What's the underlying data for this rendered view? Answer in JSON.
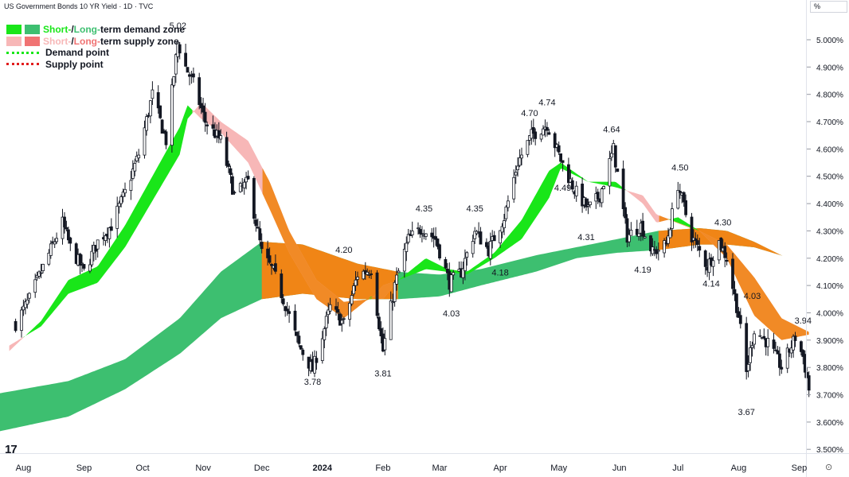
{
  "header": {
    "title": "US Government Bonds 10 YR Yield · 1D · TVC"
  },
  "price_scale": {
    "unit": "%"
  },
  "legend": {
    "demand_zone": {
      "short": "Short-",
      "sep": " / ",
      "long": "Long-",
      "rest": "term demand zone"
    },
    "supply_zone": {
      "short": "Short-",
      "sep": " / ",
      "long": "Long-",
      "rest": "term supply zone"
    },
    "demand_point": "Demand point",
    "supply_point": "Supply point"
  },
  "colors": {
    "short_demand": "#19e619",
    "long_demand": "#3dbf70",
    "short_supply": "#f7b7b7",
    "long_supply": "#f08516",
    "demand_point": "#19e619",
    "supply_point": "#e11d1d",
    "candle": "#131722"
  },
  "icons": {
    "logo": "tradingview-logo",
    "settings": "settings-icon"
  },
  "chart_data": {
    "type": "candlestick",
    "title": "US Government Bonds 10 YR Yield · 1D · TVC",
    "yunit": "%",
    "ylim": [
      3.45,
      5.08
    ],
    "y_ticks": [
      "5.000%",
      "4.900%",
      "4.800%",
      "4.700%",
      "4.600%",
      "4.500%",
      "4.400%",
      "4.300%",
      "4.200%",
      "4.100%",
      "4.000%",
      "3.900%",
      "3.800%",
      "3.700%",
      "3.600%",
      "3.500%"
    ],
    "x_ticks": [
      "Aug",
      "Sep",
      "Oct",
      "Nov",
      "Dec",
      "2024",
      "Feb",
      "Mar",
      "Apr",
      "May",
      "Jun",
      "Jul",
      "Aug",
      "Sep"
    ],
    "x_range": [
      "2023-07-28",
      "2024-09-06"
    ],
    "close_anchors": [
      [
        "2023-07-28",
        3.96
      ],
      [
        "2023-08-04",
        4.05
      ],
      [
        "2023-08-10",
        4.15
      ],
      [
        "2023-08-21",
        4.33
      ],
      [
        "2023-08-25",
        4.24
      ],
      [
        "2023-09-01",
        4.15
      ],
      [
        "2023-09-08",
        4.26
      ],
      [
        "2023-09-15",
        4.32
      ],
      [
        "2023-09-22",
        4.44
      ],
      [
        "2023-09-29",
        4.58
      ],
      [
        "2023-10-06",
        4.8
      ],
      [
        "2023-10-13",
        4.63
      ],
      [
        "2023-10-19",
        4.99
      ],
      [
        "2023-10-23",
        4.9
      ],
      [
        "2023-10-27",
        4.84
      ],
      [
        "2023-11-02",
        4.7
      ],
      [
        "2023-11-10",
        4.63
      ],
      [
        "2023-11-17",
        4.43
      ],
      [
        "2023-11-24",
        4.48
      ],
      [
        "2023-12-01",
        4.22
      ],
      [
        "2023-12-07",
        4.15
      ],
      [
        "2023-12-13",
        4.03
      ],
      [
        "2023-12-20",
        3.88
      ],
      [
        "2023-12-27",
        3.79
      ],
      [
        "2024-01-05",
        4.02
      ],
      [
        "2024-01-12",
        3.96
      ],
      [
        "2024-01-19",
        4.14
      ],
      [
        "2024-01-26",
        4.16
      ],
      [
        "2024-02-01",
        3.86
      ],
      [
        "2024-02-07",
        4.1
      ],
      [
        "2024-02-14",
        4.27
      ],
      [
        "2024-02-21",
        4.31
      ],
      [
        "2024-02-28",
        4.27
      ],
      [
        "2024-03-06",
        4.11
      ],
      [
        "2024-03-12",
        4.15
      ],
      [
        "2024-03-19",
        4.3
      ],
      [
        "2024-03-26",
        4.23
      ],
      [
        "2024-04-03",
        4.35
      ],
      [
        "2024-04-10",
        4.55
      ],
      [
        "2024-04-17",
        4.65
      ],
      [
        "2024-04-25",
        4.69
      ],
      [
        "2024-05-02",
        4.56
      ],
      [
        "2024-05-09",
        4.45
      ],
      [
        "2024-05-16",
        4.38
      ],
      [
        "2024-05-22",
        4.43
      ],
      [
        "2024-05-29",
        4.6
      ],
      [
        "2024-06-05",
        4.28
      ],
      [
        "2024-06-12",
        4.32
      ],
      [
        "2024-06-18",
        4.22
      ],
      [
        "2024-06-25",
        4.25
      ],
      [
        "2024-07-01",
        4.47
      ],
      [
        "2024-07-08",
        4.28
      ],
      [
        "2024-07-16",
        4.17
      ],
      [
        "2024-07-22",
        4.26
      ],
      [
        "2024-07-26",
        4.2
      ],
      [
        "2024-08-01",
        3.99
      ],
      [
        "2024-08-05",
        3.78
      ],
      [
        "2024-08-09",
        3.94
      ],
      [
        "2024-08-16",
        3.89
      ],
      [
        "2024-08-23",
        3.8
      ],
      [
        "2024-08-30",
        3.91
      ],
      [
        "2024-09-03",
        3.84
      ],
      [
        "2024-09-06",
        3.72
      ]
    ],
    "zones": {
      "short_term": {
        "x": [
          "2023-07-28",
          "2023-08-10",
          "2023-08-24",
          "2023-09-08",
          "2023-09-22",
          "2023-10-06",
          "2023-10-20",
          "2023-10-24",
          "2023-10-31",
          "2023-11-10",
          "2023-11-24",
          "2023-12-05",
          "2023-12-15",
          "2023-12-29",
          "2024-01-12",
          "2024-01-26",
          "2024-02-01",
          "2024-02-09",
          "2024-02-23",
          "2024-03-05",
          "2024-03-15",
          "2024-03-29",
          "2024-04-12",
          "2024-04-26",
          "2024-05-02",
          "2024-05-16",
          "2024-05-30",
          "2024-06-13",
          "2024-06-20",
          "2024-07-01",
          "2024-07-12",
          "2024-07-26",
          "2024-08-09",
          "2024-08-23",
          "2024-09-06"
        ],
        "fast": [
          3.86,
          3.97,
          4.12,
          4.17,
          4.32,
          4.5,
          4.68,
          4.76,
          4.71,
          4.66,
          4.55,
          4.38,
          4.22,
          4.05,
          3.98,
          4.06,
          4.05,
          4.12,
          4.2,
          4.16,
          4.15,
          4.22,
          4.34,
          4.52,
          4.55,
          4.48,
          4.48,
          4.4,
          4.33,
          4.35,
          4.3,
          4.2,
          3.99,
          3.9,
          3.92
        ],
        "slow": [
          3.88,
          3.95,
          4.07,
          4.11,
          4.24,
          4.41,
          4.58,
          4.71,
          4.77,
          4.7,
          4.63,
          4.48,
          4.3,
          4.12,
          4.04,
          4.05,
          4.1,
          4.12,
          4.16,
          4.15,
          4.14,
          4.2,
          4.27,
          4.42,
          4.53,
          4.48,
          4.46,
          4.43,
          4.36,
          4.33,
          4.3,
          4.25,
          4.13,
          3.98,
          3.93
        ],
        "demand_color": "#19e619",
        "supply_color": "#f7b7b7"
      },
      "long_term": {
        "x": [
          "2023-07-28",
          "2023-08-24",
          "2023-09-22",
          "2023-10-20",
          "2023-11-10",
          "2023-12-01",
          "2023-12-22",
          "2024-01-19",
          "2024-02-09",
          "2024-03-01",
          "2024-03-22",
          "2024-04-19",
          "2024-05-10",
          "2024-05-31",
          "2024-06-21",
          "2024-07-12",
          "2024-07-26",
          "2024-08-09",
          "2024-08-23",
          "2024-09-06"
        ],
        "upper": [
          3.7,
          3.75,
          3.83,
          3.98,
          4.15,
          4.26,
          4.25,
          4.18,
          4.15,
          4.14,
          4.16,
          4.21,
          4.24,
          4.27,
          4.3,
          4.31,
          4.3,
          4.26,
          4.21,
          4.18
        ],
        "lower": [
          3.56,
          3.62,
          3.72,
          3.85,
          3.98,
          4.05,
          4.07,
          4.05,
          4.05,
          4.06,
          4.1,
          4.15,
          4.2,
          4.22,
          4.23,
          4.25,
          4.25,
          4.24,
          4.21,
          4.18
        ],
        "demand_color": "#3dbf70",
        "supply_color": "#f08516",
        "supply_periods": [
          [
            "2023-12-01",
            "2024-02-09"
          ],
          [
            "2024-06-21",
            "2024-09-06"
          ]
        ]
      }
    },
    "annotations": [
      {
        "x": "2023-10-19",
        "y": 5.02,
        "text": "5.02",
        "pos": "above"
      },
      {
        "x": "2023-12-27",
        "y": 3.78,
        "text": "3.78",
        "pos": "below"
      },
      {
        "x": "2024-01-12",
        "y": 4.2,
        "text": "4.20",
        "pos": "above"
      },
      {
        "x": "2024-02-01",
        "y": 3.81,
        "text": "3.81",
        "pos": "below"
      },
      {
        "x": "2024-02-22",
        "y": 4.35,
        "text": "4.35",
        "pos": "above"
      },
      {
        "x": "2024-03-07",
        "y": 4.03,
        "text": "4.03",
        "pos": "below"
      },
      {
        "x": "2024-03-19",
        "y": 4.35,
        "text": "4.35",
        "pos": "above"
      },
      {
        "x": "2024-04-01",
        "y": 4.18,
        "text": "4.18",
        "pos": "below"
      },
      {
        "x": "2024-04-16",
        "y": 4.7,
        "text": "4.70",
        "pos": "above"
      },
      {
        "x": "2024-04-25",
        "y": 4.74,
        "text": "4.74",
        "pos": "above"
      },
      {
        "x": "2024-05-03",
        "y": 4.49,
        "text": "4.49",
        "pos": "below"
      },
      {
        "x": "2024-05-28",
        "y": 4.64,
        "text": "4.64",
        "pos": "above"
      },
      {
        "x": "2024-05-15",
        "y": 4.31,
        "text": "4.31",
        "pos": "below"
      },
      {
        "x": "2024-06-13",
        "y": 4.19,
        "text": "4.19",
        "pos": "below"
      },
      {
        "x": "2024-07-02",
        "y": 4.5,
        "text": "4.50",
        "pos": "above"
      },
      {
        "x": "2024-07-18",
        "y": 4.14,
        "text": "4.14",
        "pos": "below"
      },
      {
        "x": "2024-07-24",
        "y": 4.3,
        "text": "4.30",
        "pos": "above"
      },
      {
        "x": "2024-08-08",
        "y": 4.03,
        "text": "4.03",
        "pos": "above"
      },
      {
        "x": "2024-08-05",
        "y": 3.67,
        "text": "3.67",
        "pos": "below"
      },
      {
        "x": "2024-09-03",
        "y": 3.94,
        "text": "3.94",
        "pos": "above"
      }
    ]
  }
}
